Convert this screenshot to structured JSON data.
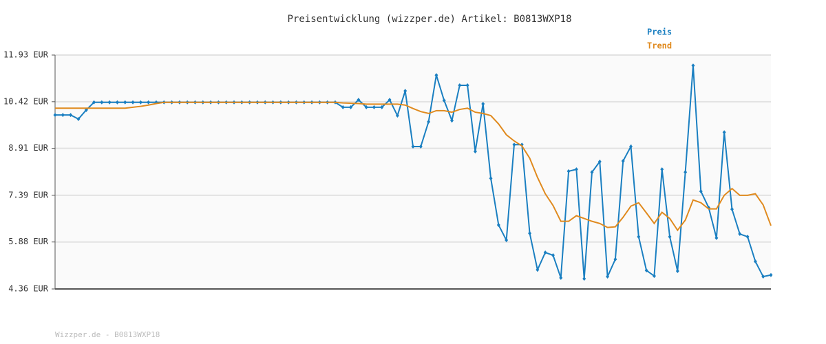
{
  "chart_data": {
    "type": "line",
    "title": "Preisentwicklung (wizzper.de) Artikel: B0813WXP18",
    "categories": [
      null,
      null,
      null,
      null,
      null,
      null,
      null,
      null,
      null,
      null,
      null,
      null,
      null,
      null,
      null,
      null,
      null,
      null,
      null,
      null,
      null,
      null,
      null,
      null,
      null,
      null,
      null,
      null,
      null,
      null,
      null,
      null,
      null,
      null,
      null,
      null,
      null,
      null,
      null,
      null,
      null,
      null,
      null,
      null,
      null,
      null,
      null,
      null,
      null,
      null,
      null,
      null,
      null,
      null,
      null,
      null,
      null,
      null,
      null,
      null,
      null,
      null,
      null,
      null,
      null,
      null,
      null,
      null,
      null,
      null,
      null,
      null,
      null,
      null,
      null,
      null,
      null,
      null,
      null,
      null,
      null,
      null,
      null,
      null,
      null,
      null,
      null,
      null,
      null,
      null,
      null,
      null,
      null
    ],
    "series": [
      {
        "name": "Preis",
        "color": "#1a7fc1",
        "markers": true,
        "values": [
          9.99,
          9.99,
          9.99,
          9.86,
          10.15,
          10.4,
          10.4,
          10.4,
          10.4,
          10.4,
          10.4,
          10.4,
          10.4,
          10.4,
          10.4,
          10.4,
          10.4,
          10.4,
          10.4,
          10.4,
          10.4,
          10.4,
          10.4,
          10.4,
          10.4,
          10.4,
          10.4,
          10.4,
          10.4,
          10.4,
          10.4,
          10.4,
          10.4,
          10.4,
          10.4,
          10.4,
          10.4,
          10.24,
          10.24,
          10.48,
          10.24,
          10.24,
          10.24,
          10.48,
          9.97,
          10.77,
          8.97,
          8.97,
          9.77,
          11.28,
          10.46,
          9.81,
          10.95,
          10.95,
          8.81,
          10.35,
          7.94,
          6.43,
          5.94,
          9.03,
          9.03,
          6.16,
          4.98,
          5.54,
          5.45,
          4.72,
          8.17,
          8.23,
          4.69,
          8.14,
          8.48,
          4.76,
          5.32,
          8.5,
          8.97,
          6.05,
          4.96,
          4.78,
          8.23,
          6.05,
          4.94,
          8.14,
          11.59,
          7.52,
          6.99,
          6.01,
          9.43,
          6.94,
          6.14,
          6.05,
          5.25,
          4.76,
          4.81
        ]
      },
      {
        "name": "Trend",
        "color": "#e08a1e",
        "markers": false,
        "values": [
          10.21,
          10.21,
          10.21,
          10.21,
          10.21,
          10.21,
          10.21,
          10.21,
          10.21,
          10.21,
          10.24,
          10.27,
          10.31,
          10.36,
          10.4,
          10.4,
          10.4,
          10.4,
          10.4,
          10.4,
          10.4,
          10.4,
          10.4,
          10.4,
          10.4,
          10.4,
          10.4,
          10.4,
          10.4,
          10.4,
          10.4,
          10.4,
          10.4,
          10.4,
          10.4,
          10.4,
          10.4,
          10.38,
          10.37,
          10.36,
          10.34,
          10.34,
          10.34,
          10.34,
          10.34,
          10.31,
          10.2,
          10.1,
          10.04,
          10.13,
          10.13,
          10.08,
          10.17,
          10.21,
          10.08,
          10.04,
          9.97,
          9.7,
          9.35,
          9.15,
          8.99,
          8.59,
          7.97,
          7.44,
          7.06,
          6.55,
          6.55,
          6.73,
          6.64,
          6.55,
          6.48,
          6.35,
          6.37,
          6.68,
          7.04,
          7.15,
          6.82,
          6.48,
          6.84,
          6.64,
          6.26,
          6.59,
          7.24,
          7.15,
          6.95,
          6.95,
          7.39,
          7.61,
          7.39,
          7.39,
          7.44,
          7.08,
          6.41
        ]
      }
    ],
    "ylim": [
      4.36,
      11.93
    ],
    "yticks": [
      {
        "value": 4.36,
        "label": "4.36 EUR"
      },
      {
        "value": 5.88,
        "label": "5.88 EUR"
      },
      {
        "value": 7.39,
        "label": "7.39 EUR"
      },
      {
        "value": 8.91,
        "label": "8.91 EUR"
      },
      {
        "value": 10.42,
        "label": "10.42 EUR"
      },
      {
        "value": 11.93,
        "label": "11.93 EUR"
      }
    ],
    "grid": true,
    "legend": "top-right"
  },
  "footer": "Wizzper.de - B0813WXP18"
}
